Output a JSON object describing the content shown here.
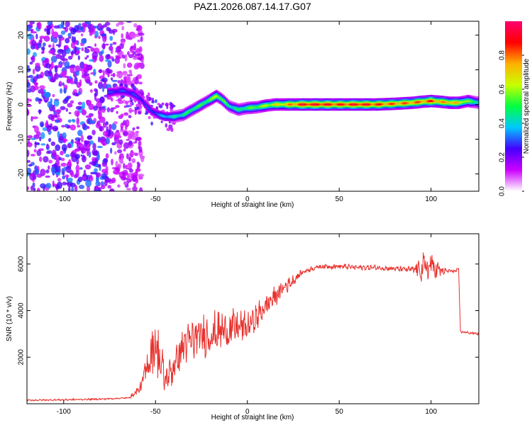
{
  "figure": {
    "title": "PAZ1.2026.087.14.17.G07"
  },
  "chart_data": [
    {
      "type": "heatmap",
      "title": "PAZ1.2026.087.14.17.G07",
      "xlabel": "Height of straight line (km)",
      "ylabel": "Frequency (Hz)",
      "xlim": [
        -120,
        126
      ],
      "ylim": [
        -25,
        24
      ],
      "xticks": [
        -100,
        -50,
        0,
        50,
        100
      ],
      "xtick_labels": [
        "-100",
        "-50",
        "0",
        "50",
        "100"
      ],
      "yticks": [
        -20,
        -10,
        0,
        10,
        20
      ],
      "ytick_labels": [
        "-20",
        "-10",
        "0",
        "10",
        "20"
      ],
      "colorbar": {
        "label": "Normalized spectral amplitude",
        "range": [
          0,
          1
        ],
        "ticks": [
          0.0,
          0.2,
          0.4,
          0.6,
          0.8
        ],
        "tick_labels": [
          "0.0",
          "0.2",
          "0.4",
          "0.6",
          "0.8"
        ],
        "colors": [
          "#ffffff",
          "#cc00ff",
          "#4400ff",
          "#00c8ff",
          "#00ff40",
          "#c8ff00",
          "#ffb000",
          "#ff0000",
          "#ff0070"
        ]
      },
      "ridge": {
        "description": "Dominant frequency track (Hz) vs height (km)",
        "x": [
          -75,
          -68,
          -62,
          -58,
          -55,
          -52,
          -48,
          -45,
          -40,
          -35,
          -30,
          -25,
          -20,
          -17,
          -14,
          -10,
          -5,
          0,
          5,
          10,
          15,
          20,
          30,
          40,
          50,
          60,
          70,
          80,
          90,
          95,
          100,
          105,
          110,
          115,
          120,
          126
        ],
        "y": [
          3.5,
          4.0,
          3.0,
          1.5,
          -0.5,
          -2.0,
          -3.0,
          -3.5,
          -3.5,
          -3.0,
          -1.5,
          0.0,
          1.5,
          2.5,
          1.5,
          -0.5,
          -1.5,
          -1.0,
          -0.8,
          -0.3,
          0.0,
          0.0,
          0.0,
          0.0,
          0.0,
          0.0,
          0.0,
          0.2,
          0.5,
          0.8,
          1.0,
          0.8,
          0.5,
          0.5,
          1.0,
          0.5
        ],
        "amplitude": [
          0.3,
          0.3,
          0.3,
          0.3,
          0.3,
          0.3,
          0.35,
          0.4,
          0.45,
          0.5,
          0.55,
          0.55,
          0.6,
          0.7,
          0.6,
          0.5,
          0.5,
          0.55,
          0.6,
          0.65,
          0.7,
          0.75,
          0.95,
          0.95,
          0.9,
          0.95,
          0.9,
          0.85,
          0.85,
          0.85,
          0.9,
          0.8,
          0.8,
          0.75,
          0.6,
          0.5
        ]
      },
      "noise_region_x": [
        -120,
        -63
      ]
    },
    {
      "type": "line",
      "xlabel": "Height of straight line (km)",
      "ylabel": "SNR (10 * v/v)",
      "xlim": [
        -120,
        126
      ],
      "ylim": [
        0,
        7300
      ],
      "xticks": [
        -100,
        -50,
        0,
        50,
        100
      ],
      "xtick_labels": [
        "-100",
        "-50",
        "0",
        "50",
        "100"
      ],
      "yticks": [
        2000,
        4000,
        6000
      ],
      "ytick_labels": [
        "2000",
        "4000",
        "6000"
      ],
      "color": "#e8302c",
      "series": [
        {
          "name": "SNR",
          "x": [
            -120,
            -100,
            -80,
            -65,
            -62,
            -58,
            -55,
            -52,
            -50,
            -48,
            -45,
            -40,
            -35,
            -30,
            -25,
            -20,
            -15,
            -10,
            -5,
            0,
            5,
            10,
            15,
            20,
            25,
            30,
            35,
            40,
            50,
            60,
            70,
            80,
            90,
            95,
            100,
            105,
            110,
            114,
            115,
            116,
            120,
            126
          ],
          "y": [
            150,
            170,
            200,
            250,
            400,
            700,
            1500,
            2300,
            2600,
            2000,
            1000,
            1600,
            2500,
            2700,
            2900,
            3000,
            3100,
            3200,
            3300,
            3300,
            3700,
            4200,
            4600,
            5000,
            5300,
            5650,
            5800,
            5900,
            5900,
            5850,
            5850,
            5800,
            5750,
            5800,
            5900,
            5700,
            5700,
            5700,
            5750,
            3100,
            3050,
            3000
          ]
        }
      ],
      "oscillation_amplitude": {
        "x": [
          -120,
          -65,
          -58,
          -52,
          -48,
          -44,
          -40,
          -30,
          -20,
          -10,
          0,
          10,
          20,
          25,
          30,
          50,
          80,
          90,
          95,
          100,
          104,
          108,
          115,
          116,
          126
        ],
        "y": [
          30,
          30,
          200,
          900,
          1100,
          400,
          700,
          800,
          750,
          700,
          500,
          450,
          300,
          200,
          90,
          90,
          90,
          120,
          500,
          700,
          300,
          80,
          80,
          50,
          50
        ]
      }
    }
  ]
}
